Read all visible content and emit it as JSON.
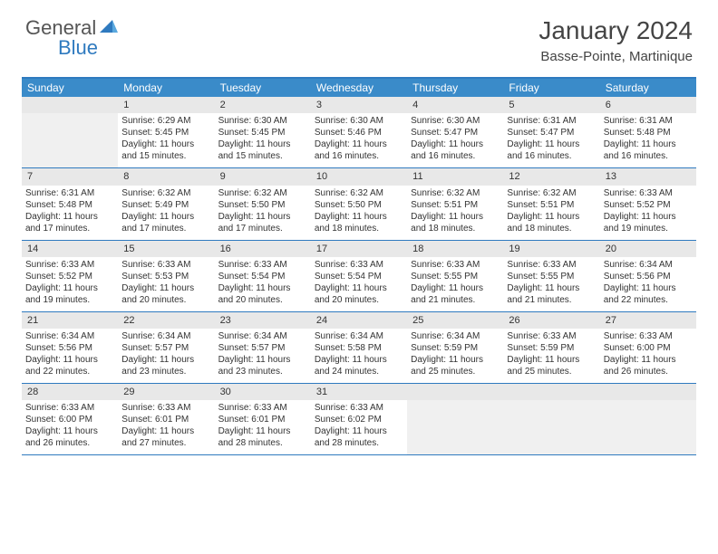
{
  "logo": {
    "part1": "General",
    "part2": "Blue"
  },
  "title": {
    "month": "January 2024",
    "location": "Basse-Pointe, Martinique"
  },
  "day_names": [
    "Sunday",
    "Monday",
    "Tuesday",
    "Wednesday",
    "Thursday",
    "Friday",
    "Saturday"
  ],
  "colors": {
    "header_bg": "#3a8bc9",
    "border": "#2f7abf",
    "daynum_bg": "#e8e8e8",
    "logo_blue": "#2f7abf",
    "text": "#333333"
  },
  "weeks": [
    [
      null,
      {
        "n": "1",
        "sr": "6:29 AM",
        "ss": "5:45 PM",
        "dl": "11 hours and 15 minutes."
      },
      {
        "n": "2",
        "sr": "6:30 AM",
        "ss": "5:45 PM",
        "dl": "11 hours and 15 minutes."
      },
      {
        "n": "3",
        "sr": "6:30 AM",
        "ss": "5:46 PM",
        "dl": "11 hours and 16 minutes."
      },
      {
        "n": "4",
        "sr": "6:30 AM",
        "ss": "5:47 PM",
        "dl": "11 hours and 16 minutes."
      },
      {
        "n": "5",
        "sr": "6:31 AM",
        "ss": "5:47 PM",
        "dl": "11 hours and 16 minutes."
      },
      {
        "n": "6",
        "sr": "6:31 AM",
        "ss": "5:48 PM",
        "dl": "11 hours and 16 minutes."
      }
    ],
    [
      {
        "n": "7",
        "sr": "6:31 AM",
        "ss": "5:48 PM",
        "dl": "11 hours and 17 minutes."
      },
      {
        "n": "8",
        "sr": "6:32 AM",
        "ss": "5:49 PM",
        "dl": "11 hours and 17 minutes."
      },
      {
        "n": "9",
        "sr": "6:32 AM",
        "ss": "5:50 PM",
        "dl": "11 hours and 17 minutes."
      },
      {
        "n": "10",
        "sr": "6:32 AM",
        "ss": "5:50 PM",
        "dl": "11 hours and 18 minutes."
      },
      {
        "n": "11",
        "sr": "6:32 AM",
        "ss": "5:51 PM",
        "dl": "11 hours and 18 minutes."
      },
      {
        "n": "12",
        "sr": "6:32 AM",
        "ss": "5:51 PM",
        "dl": "11 hours and 18 minutes."
      },
      {
        "n": "13",
        "sr": "6:33 AM",
        "ss": "5:52 PM",
        "dl": "11 hours and 19 minutes."
      }
    ],
    [
      {
        "n": "14",
        "sr": "6:33 AM",
        "ss": "5:52 PM",
        "dl": "11 hours and 19 minutes."
      },
      {
        "n": "15",
        "sr": "6:33 AM",
        "ss": "5:53 PM",
        "dl": "11 hours and 20 minutes."
      },
      {
        "n": "16",
        "sr": "6:33 AM",
        "ss": "5:54 PM",
        "dl": "11 hours and 20 minutes."
      },
      {
        "n": "17",
        "sr": "6:33 AM",
        "ss": "5:54 PM",
        "dl": "11 hours and 20 minutes."
      },
      {
        "n": "18",
        "sr": "6:33 AM",
        "ss": "5:55 PM",
        "dl": "11 hours and 21 minutes."
      },
      {
        "n": "19",
        "sr": "6:33 AM",
        "ss": "5:55 PM",
        "dl": "11 hours and 21 minutes."
      },
      {
        "n": "20",
        "sr": "6:34 AM",
        "ss": "5:56 PM",
        "dl": "11 hours and 22 minutes."
      }
    ],
    [
      {
        "n": "21",
        "sr": "6:34 AM",
        "ss": "5:56 PM",
        "dl": "11 hours and 22 minutes."
      },
      {
        "n": "22",
        "sr": "6:34 AM",
        "ss": "5:57 PM",
        "dl": "11 hours and 23 minutes."
      },
      {
        "n": "23",
        "sr": "6:34 AM",
        "ss": "5:57 PM",
        "dl": "11 hours and 23 minutes."
      },
      {
        "n": "24",
        "sr": "6:34 AM",
        "ss": "5:58 PM",
        "dl": "11 hours and 24 minutes."
      },
      {
        "n": "25",
        "sr": "6:34 AM",
        "ss": "5:59 PM",
        "dl": "11 hours and 25 minutes."
      },
      {
        "n": "26",
        "sr": "6:33 AM",
        "ss": "5:59 PM",
        "dl": "11 hours and 25 minutes."
      },
      {
        "n": "27",
        "sr": "6:33 AM",
        "ss": "6:00 PM",
        "dl": "11 hours and 26 minutes."
      }
    ],
    [
      {
        "n": "28",
        "sr": "6:33 AM",
        "ss": "6:00 PM",
        "dl": "11 hours and 26 minutes."
      },
      {
        "n": "29",
        "sr": "6:33 AM",
        "ss": "6:01 PM",
        "dl": "11 hours and 27 minutes."
      },
      {
        "n": "30",
        "sr": "6:33 AM",
        "ss": "6:01 PM",
        "dl": "11 hours and 28 minutes."
      },
      {
        "n": "31",
        "sr": "6:33 AM",
        "ss": "6:02 PM",
        "dl": "11 hours and 28 minutes."
      },
      null,
      null,
      null
    ]
  ]
}
